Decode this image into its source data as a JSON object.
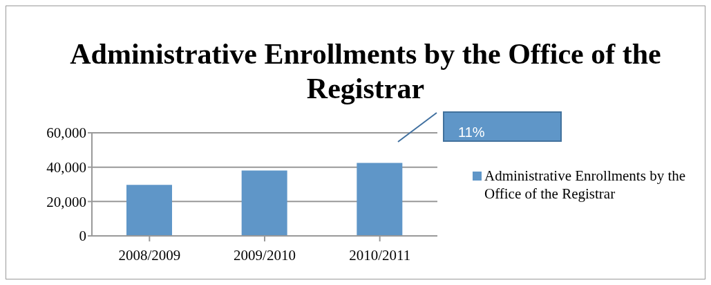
{
  "chart_data": {
    "type": "bar",
    "title": "Administrative Enrollments by the Office of the Registrar",
    "categories": [
      "2008/2009",
      "2009/2010",
      "2010/2011"
    ],
    "series": [
      {
        "name": "Administrative Enrollments by the Office of the Registrar",
        "color": "#5f96c8",
        "values": [
          29700,
          38100,
          42500
        ]
      }
    ],
    "ylim": [
      0,
      60000
    ],
    "yticks": [
      {
        "value": 0,
        "label": "0"
      },
      {
        "value": 20000,
        "label": "20,000"
      },
      {
        "value": 40000,
        "label": "40,000"
      },
      {
        "value": 60000,
        "label": "60,000"
      }
    ],
    "grid": "y",
    "legend": "right",
    "annotations": [
      "11%"
    ]
  }
}
